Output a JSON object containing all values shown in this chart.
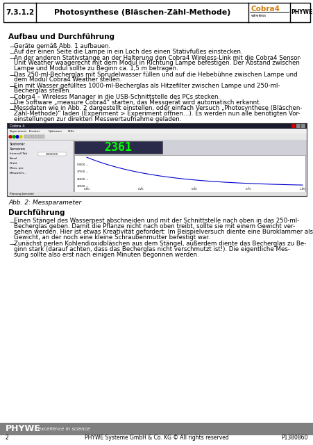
{
  "header_number": "7.3.1.2",
  "header_title": "Photosynthese (Bläschen-Zähl-Methode)",
  "header_cobra": "Cobra4",
  "header_wireless": "wireless",
  "header_phywe": "PHYWE",
  "section1_title": "Aufbau und Durchführung",
  "fig_caption": "Abb. 2: Messparameter",
  "section2_title": "Durchführung",
  "footer_logo": "PHYWE",
  "footer_sub": "excellence in science",
  "footer_page": "2",
  "footer_copy": "PHYWE Systeme GmbH & Co. KG © All rights reserved",
  "footer_code": "P1380860",
  "bg_color": "#ffffff",
  "footer_bar_color": "#808080",
  "text_color": "#000000",
  "cobra_color": "#d47c0a",
  "header_border_color": "#000000"
}
